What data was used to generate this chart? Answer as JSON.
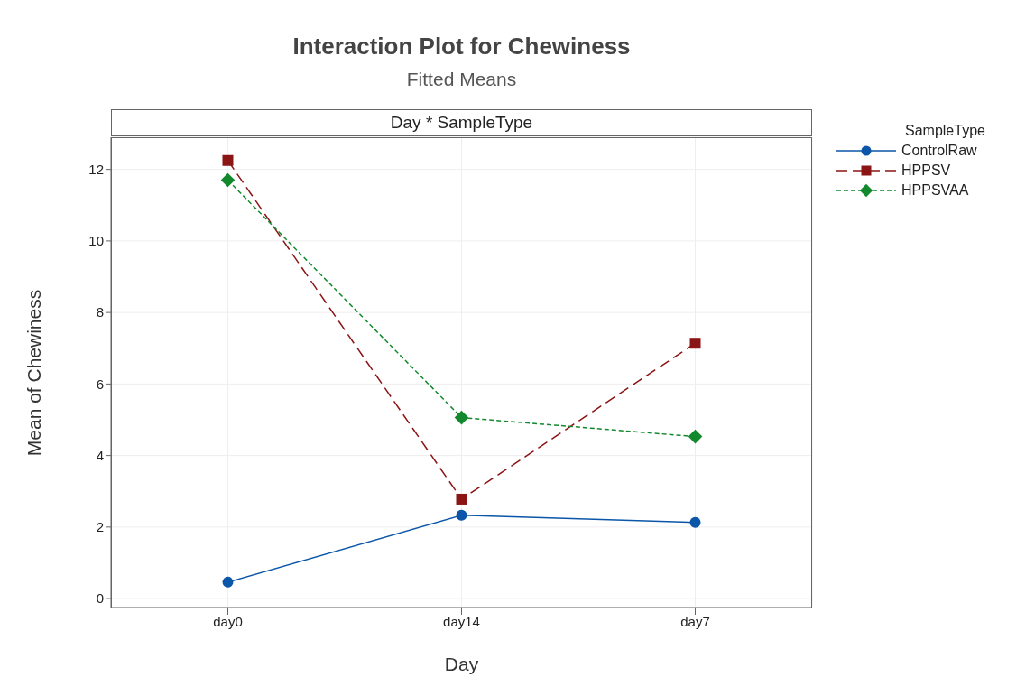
{
  "chart_data": {
    "type": "line",
    "title": "Interaction Plot for Chewiness",
    "subtitle": "Fitted Means",
    "annotations": [
      "Day * SampleType"
    ],
    "xlabel": "Day",
    "ylabel": "Mean of Chewiness",
    "legend_title": "SampleType",
    "legend": "top right",
    "grid": true,
    "categories": [
      "day0",
      "day14",
      "day7"
    ],
    "ylim": [
      -0.25,
      12.9
    ],
    "yticks": [
      0,
      2,
      4,
      6,
      8,
      10,
      12
    ],
    "series": [
      {
        "name": "ControlRaw",
        "color": "#0b56a8",
        "marker": "circle",
        "line_style": "solid",
        "values": [
          0.46,
          2.33,
          2.13
        ]
      },
      {
        "name": "HPPSV",
        "color": "#8b1414",
        "marker": "square",
        "line_style": "longdash",
        "values": [
          12.25,
          2.78,
          7.14
        ]
      },
      {
        "name": "HPPSVAA",
        "color": "#13892d",
        "marker": "diamond",
        "line_style": "dashed",
        "values": [
          11.7,
          5.06,
          4.53
        ]
      }
    ]
  }
}
